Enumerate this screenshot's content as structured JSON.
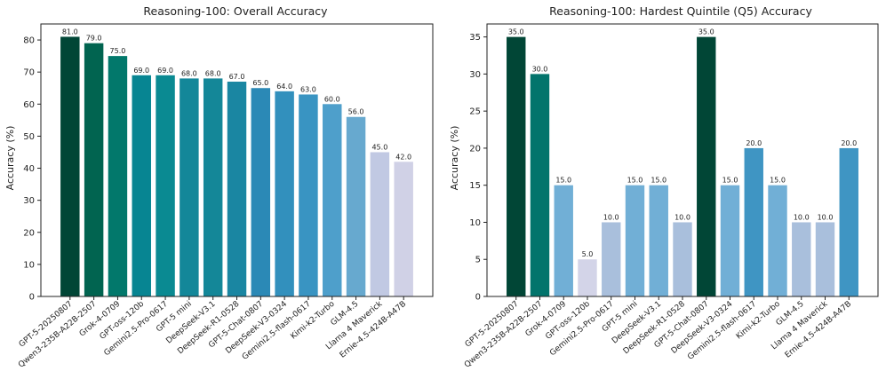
{
  "chart_data": [
    {
      "type": "bar",
      "title": "Reasoning-100: Overall Accuracy",
      "xlabel": "",
      "ylabel": "Accuracy (%)",
      "ylim": [
        0,
        85
      ],
      "yticks": [
        0,
        10,
        20,
        30,
        40,
        50,
        60,
        70,
        80
      ],
      "grid": false,
      "categories": [
        "GPT-5-20250807",
        "Qwen3-235B-A22B-2507",
        "Grok-4-0709",
        "GPT-oss-120b",
        "Gemini2.5-Pro-0617",
        "GPT-5 mini",
        "DeepSeek-V3.1",
        "DeepSeek-R1-0528",
        "GPT-5-Chat-0807",
        "DeepSeek-V3-0324",
        "Gemini2.5-flash-0617",
        "Kimi-k2-Turbo",
        "GLM-4.5",
        "Llama 4 Maverick",
        "Ernie-4.5-424B-A47B"
      ],
      "values": [
        81.0,
        79.0,
        75.0,
        69.0,
        69.0,
        68.0,
        68.0,
        67.0,
        65.0,
        64.0,
        63.0,
        60.0,
        56.0,
        45.0,
        42.0
      ],
      "data_labels": [
        "81.0",
        "79.0",
        "75.0",
        "69.0",
        "69.0",
        "68.0",
        "68.0",
        "67.0",
        "65.0",
        "64.0",
        "63.0",
        "60.0",
        "56.0",
        "45.0",
        "42.0"
      ],
      "colors": [
        "#014636",
        "#016450",
        "#02786b",
        "#078592",
        "#0a8a92",
        "#138799",
        "#148798",
        "#1a86a2",
        "#2b89b6",
        "#3290bd",
        "#3994c2",
        "#4e9fcb",
        "#67a9cf",
        "#c1c9e3",
        "#d0d1e6"
      ]
    },
    {
      "type": "bar",
      "title": "Reasoning-100: Hardest Quintile (Q5) Accuracy",
      "xlabel": "",
      "ylabel": "Accuracy (%)",
      "ylim": [
        0,
        36.75
      ],
      "yticks": [
        0,
        5,
        10,
        15,
        20,
        25,
        30,
        35
      ],
      "grid": false,
      "categories": [
        "GPT-5-20250807",
        "Qwen3-235B-A22B-2507",
        "Grok-4-0709",
        "GPT-oss-120b",
        "Gemini2.5-Pro-0617",
        "GPT-5 mini",
        "DeepSeek-V3.1",
        "DeepSeek-R1-0528",
        "GPT-5-Chat-0807",
        "DeepSeek-V3-0324",
        "Gemini2.5-flash-0617",
        "Kimi-k2-Turbo",
        "GLM-4.5",
        "Llama 4 Maverick",
        "Ernie-4.5-424B-A47B"
      ],
      "values": [
        35.0,
        30.0,
        15.0,
        5.0,
        10.0,
        15.0,
        15.0,
        10.0,
        35.0,
        15.0,
        20.0,
        15.0,
        10.0,
        10.0,
        20.0
      ],
      "data_labels": [
        "35.0",
        "30.0",
        "15.0",
        "5.0",
        "10.0",
        "15.0",
        "15.0",
        "10.0",
        "35.0",
        "15.0",
        "20.0",
        "15.0",
        "10.0",
        "10.0",
        "20.0"
      ],
      "colors": [
        "#014636",
        "#02746c",
        "#71afd6",
        "#d3d4e8",
        "#a9bfdc",
        "#71afd6",
        "#71afd6",
        "#a9bfdc",
        "#014636",
        "#71afd6",
        "#3f95c3",
        "#71afd6",
        "#a9bfdc",
        "#a9bfdc",
        "#3f95c3"
      ]
    }
  ]
}
